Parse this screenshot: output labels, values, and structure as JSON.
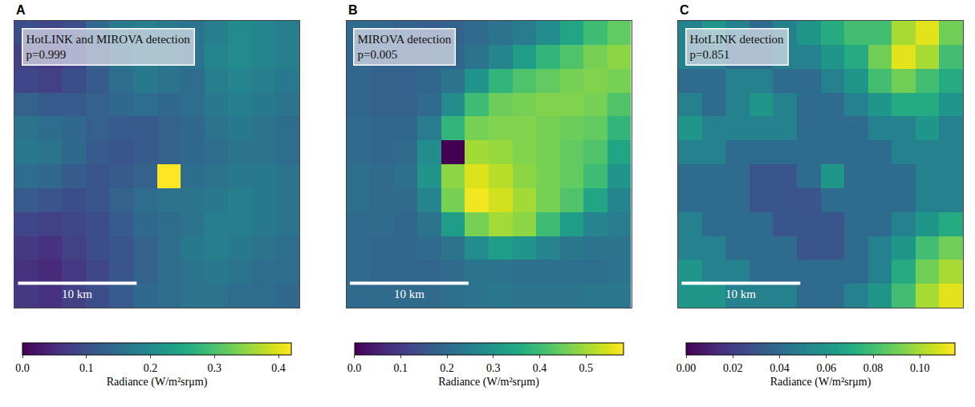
{
  "chart_data": [
    {
      "type": "heatmap",
      "panel": "A",
      "annotations": [
        "HotLINK and MIROVA detection",
        "p=0.999"
      ],
      "x": [
        1,
        3,
        5,
        7,
        9,
        11,
        13,
        15,
        17,
        19,
        21,
        23
      ],
      "y": [
        1,
        3,
        5,
        7,
        9,
        11,
        13,
        15,
        17,
        19,
        21,
        23
      ],
      "xlim": [
        0,
        24
      ],
      "ylim": [
        24,
        0
      ],
      "z": [
        [
          0.1,
          0.09,
          0.1,
          0.14,
          0.17,
          0.18,
          0.17,
          0.16,
          0.18,
          0.2,
          0.19,
          0.18
        ],
        [
          0.08,
          0.07,
          0.09,
          0.13,
          0.16,
          0.18,
          0.17,
          0.16,
          0.19,
          0.2,
          0.19,
          0.18
        ],
        [
          0.09,
          0.08,
          0.1,
          0.12,
          0.15,
          0.17,
          0.16,
          0.15,
          0.18,
          0.19,
          0.18,
          0.17
        ],
        [
          0.13,
          0.12,
          0.12,
          0.13,
          0.14,
          0.15,
          0.14,
          0.15,
          0.17,
          0.18,
          0.17,
          0.16
        ],
        [
          0.16,
          0.15,
          0.14,
          0.13,
          0.12,
          0.12,
          0.13,
          0.14,
          0.16,
          0.17,
          0.16,
          0.15
        ],
        [
          0.17,
          0.16,
          0.14,
          0.12,
          0.11,
          0.12,
          0.13,
          0.14,
          0.15,
          0.16,
          0.16,
          0.15
        ],
        [
          0.15,
          0.14,
          0.12,
          0.11,
          0.12,
          0.13,
          0.42,
          0.15,
          0.16,
          0.17,
          0.17,
          0.16
        ],
        [
          0.12,
          0.11,
          0.1,
          0.11,
          0.13,
          0.15,
          0.16,
          0.16,
          0.17,
          0.18,
          0.17,
          0.16
        ],
        [
          0.09,
          0.08,
          0.09,
          0.1,
          0.12,
          0.14,
          0.15,
          0.16,
          0.18,
          0.18,
          0.17,
          0.16
        ],
        [
          0.07,
          0.06,
          0.08,
          0.1,
          0.11,
          0.13,
          0.15,
          0.17,
          0.18,
          0.17,
          0.16,
          0.15
        ],
        [
          0.06,
          0.05,
          0.07,
          0.09,
          0.11,
          0.13,
          0.15,
          0.16,
          0.17,
          0.16,
          0.15,
          0.15
        ],
        [
          0.07,
          0.06,
          0.08,
          0.1,
          0.12,
          0.14,
          0.15,
          0.16,
          0.16,
          0.15,
          0.15,
          0.14
        ]
      ],
      "zlim": [
        0,
        0.42
      ],
      "zticks": [
        {
          "value": 0,
          "label": "0.0"
        },
        0.1,
        0.2,
        0.3,
        0.4
      ],
      "colorbar_title": "Radiance (W/m²srμm)",
      "color": "Viridis",
      "tick_labels": false,
      "scale_bar": {
        "length": 10,
        "label": "10 km"
      }
    },
    {
      "type": "heatmap",
      "panel": "B",
      "annotations": [
        "MIROVA detection",
        "p=0.005"
      ],
      "x": [
        1,
        3,
        5,
        7,
        9,
        11,
        13,
        15,
        17,
        19,
        21,
        23
      ],
      "y": [
        1,
        3,
        5,
        7,
        9,
        11,
        13,
        15,
        17,
        19,
        21,
        23
      ],
      "xlim": [
        0,
        24
      ],
      "ylim": [
        24,
        0
      ],
      "z": [
        [
          0.2,
          0.19,
          0.18,
          0.17,
          0.18,
          0.2,
          0.22,
          0.24,
          0.28,
          0.34,
          0.4,
          0.44
        ],
        [
          0.19,
          0.18,
          0.18,
          0.18,
          0.19,
          0.22,
          0.26,
          0.32,
          0.38,
          0.42,
          0.46,
          0.48
        ],
        [
          0.19,
          0.18,
          0.18,
          0.19,
          0.22,
          0.3,
          0.38,
          0.42,
          0.44,
          0.46,
          0.47,
          0.46
        ],
        [
          0.19,
          0.18,
          0.18,
          0.2,
          0.28,
          0.4,
          0.45,
          0.46,
          0.47,
          0.47,
          0.46,
          0.42
        ],
        [
          0.2,
          0.19,
          0.19,
          0.24,
          0.38,
          0.46,
          0.47,
          0.47,
          0.46,
          0.45,
          0.44,
          0.38
        ],
        [
          0.2,
          0.19,
          0.2,
          0.28,
          0.0,
          0.5,
          0.49,
          0.47,
          0.46,
          0.44,
          0.42,
          0.34
        ],
        [
          0.21,
          0.2,
          0.21,
          0.3,
          0.48,
          0.55,
          0.52,
          0.48,
          0.46,
          0.44,
          0.4,
          0.3
        ],
        [
          0.21,
          0.2,
          0.2,
          0.26,
          0.46,
          0.57,
          0.54,
          0.5,
          0.46,
          0.42,
          0.34,
          0.26
        ],
        [
          0.2,
          0.2,
          0.19,
          0.22,
          0.32,
          0.46,
          0.5,
          0.48,
          0.4,
          0.32,
          0.26,
          0.24
        ],
        [
          0.2,
          0.19,
          0.19,
          0.2,
          0.22,
          0.28,
          0.32,
          0.3,
          0.26,
          0.23,
          0.22,
          0.22
        ],
        [
          0.2,
          0.19,
          0.19,
          0.19,
          0.2,
          0.22,
          0.22,
          0.21,
          0.21,
          0.21,
          0.21,
          0.22
        ],
        [
          0.2,
          0.2,
          0.2,
          0.2,
          0.21,
          0.22,
          0.23,
          0.22,
          0.22,
          0.22,
          0.23,
          0.23
        ]
      ],
      "zlim": [
        0,
        0.58
      ],
      "zticks": [
        {
          "value": 0,
          "label": "0.0"
        },
        0.1,
        0.2,
        0.3,
        0.4,
        0.5
      ],
      "colorbar_title": "Radiance (W/m²srμm)",
      "color": "Viridis",
      "tick_labels": false,
      "scale_bar": {
        "length": 10,
        "label": "10 km"
      }
    },
    {
      "type": "heatmap",
      "panel": "C",
      "annotations": [
        "HotLINK detection",
        "p=0.851"
      ],
      "x": [
        1,
        3,
        5,
        7,
        9,
        11,
        13,
        15,
        17,
        19,
        21,
        23
      ],
      "y": [
        1,
        3,
        5,
        7,
        9,
        11,
        13,
        15,
        17,
        19,
        21,
        23
      ],
      "xlim": [
        0,
        24
      ],
      "ylim": [
        24,
        0
      ],
      "z": [
        [
          0.05,
          0.06,
          0.05,
          0.04,
          0.05,
          0.06,
          0.07,
          0.08,
          0.08,
          0.1,
          0.11,
          0.09
        ],
        [
          0.05,
          0.05,
          0.04,
          0.04,
          0.05,
          0.05,
          0.06,
          0.07,
          0.09,
          0.11,
          0.1,
          0.08
        ],
        [
          0.04,
          0.04,
          0.05,
          0.05,
          0.04,
          0.04,
          0.05,
          0.06,
          0.08,
          0.09,
          0.08,
          0.07
        ],
        [
          0.05,
          0.04,
          0.05,
          0.06,
          0.05,
          0.04,
          0.04,
          0.05,
          0.06,
          0.07,
          0.07,
          0.06
        ],
        [
          0.06,
          0.05,
          0.05,
          0.05,
          0.05,
          0.04,
          0.04,
          0.04,
          0.05,
          0.05,
          0.06,
          0.05
        ],
        [
          0.05,
          0.05,
          0.04,
          0.04,
          0.04,
          0.04,
          0.04,
          0.04,
          0.04,
          0.05,
          0.05,
          0.05
        ],
        [
          0.04,
          0.04,
          0.04,
          0.03,
          0.03,
          0.04,
          0.06,
          0.04,
          0.04,
          0.04,
          0.05,
          0.05
        ],
        [
          0.04,
          0.04,
          0.04,
          0.03,
          0.03,
          0.03,
          0.04,
          0.04,
          0.04,
          0.04,
          0.05,
          0.05
        ],
        [
          0.05,
          0.04,
          0.04,
          0.04,
          0.03,
          0.03,
          0.03,
          0.04,
          0.04,
          0.05,
          0.06,
          0.07
        ],
        [
          0.05,
          0.05,
          0.04,
          0.04,
          0.04,
          0.03,
          0.03,
          0.04,
          0.05,
          0.06,
          0.08,
          0.09
        ],
        [
          0.06,
          0.05,
          0.05,
          0.04,
          0.04,
          0.04,
          0.04,
          0.04,
          0.05,
          0.07,
          0.09,
          0.1
        ],
        [
          0.06,
          0.06,
          0.05,
          0.05,
          0.05,
          0.04,
          0.04,
          0.05,
          0.06,
          0.08,
          0.1,
          0.11
        ]
      ],
      "zlim": [
        0,
        0.115
      ],
      "zticks": [
        {
          "value": 0,
          "label": "0.00"
        },
        0.02,
        0.04,
        0.06,
        0.08,
        {
          "value": 0.1,
          "label": "0.10"
        }
      ],
      "colorbar_title": "Radiance (W/m²srμm)",
      "color": "Viridis",
      "tick_labels": false,
      "scale_bar": {
        "length": 10,
        "label": "10 km"
      }
    }
  ]
}
